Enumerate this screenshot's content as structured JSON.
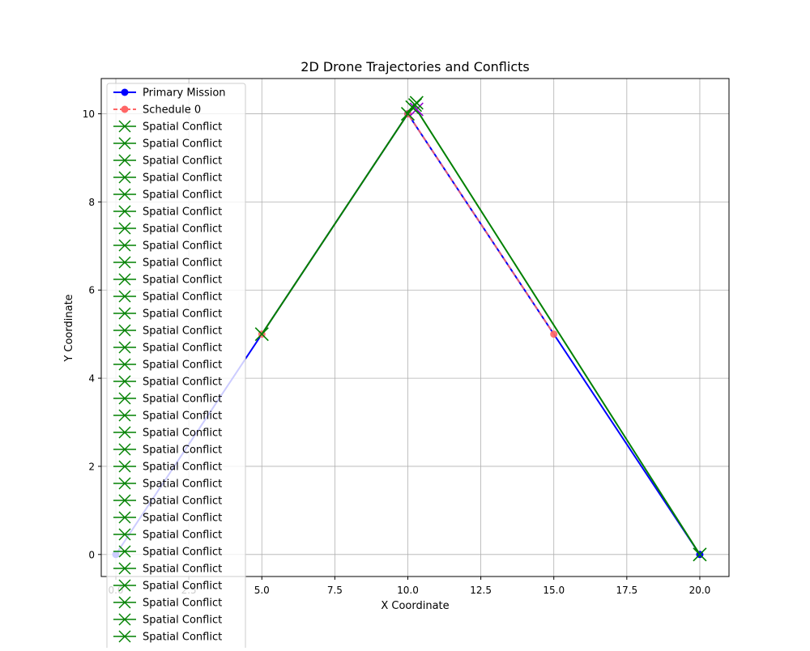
{
  "chart_data": {
    "type": "line",
    "title": "2D Drone Trajectories and Conflicts",
    "xlabel": "X Coordinate",
    "ylabel": "Y Coordinate",
    "xlim": [
      -0.5,
      21.0
    ],
    "ylim": [
      -0.5,
      10.8
    ],
    "grid": true,
    "legend_position": "upper-left",
    "x_ticks": [
      0.0,
      2.5,
      5.0,
      7.5,
      10.0,
      12.5,
      15.0,
      17.5,
      20.0
    ],
    "x_tick_labels": [
      "0.0",
      "2.5",
      "5.0",
      "7.5",
      "10.0",
      "12.5",
      "15.0",
      "17.5",
      "20.0"
    ],
    "y_ticks": [
      0,
      2,
      4,
      6,
      8,
      10
    ],
    "y_tick_labels": [
      "0",
      "2",
      "4",
      "6",
      "8",
      "10"
    ],
    "primary": {
      "name": "Primary Mission",
      "color": "#0000ff",
      "points": [
        [
          0,
          0
        ],
        [
          10,
          10
        ],
        [
          20,
          0
        ]
      ]
    },
    "schedule": {
      "name": "Schedule 0",
      "color": "#ff6666",
      "points": [
        [
          5,
          5
        ],
        [
          10,
          10
        ],
        [
          15,
          5
        ]
      ]
    },
    "conflict_line": {
      "color": "#008000",
      "points": [
        [
          5,
          5
        ],
        [
          10.2,
          10.2
        ],
        [
          20,
          0
        ]
      ]
    },
    "conflict_markers": [
      [
        5,
        5
      ],
      [
        10.0,
        10.0
      ],
      [
        10.15,
        10.15
      ],
      [
        10.25,
        10.2
      ],
      [
        10.3,
        10.25
      ],
      [
        20,
        0
      ]
    ],
    "temporal_markers": [
      [
        10.3,
        10.1
      ]
    ],
    "temporal_color": "#9400d3",
    "legend_entries": [
      {
        "label": "Primary Mission",
        "style": "primary"
      },
      {
        "label": "Schedule 0",
        "style": "schedule"
      },
      {
        "label": "Spatial Conflict",
        "style": "conflict"
      },
      {
        "label": "Spatial Conflict",
        "style": "conflict"
      },
      {
        "label": "Spatial Conflict",
        "style": "conflict"
      },
      {
        "label": "Spatial Conflict",
        "style": "conflict"
      },
      {
        "label": "Spatial Conflict",
        "style": "conflict"
      },
      {
        "label": "Spatial Conflict",
        "style": "conflict"
      },
      {
        "label": "Spatial Conflict",
        "style": "conflict"
      },
      {
        "label": "Spatial Conflict",
        "style": "conflict"
      },
      {
        "label": "Spatial Conflict",
        "style": "conflict"
      },
      {
        "label": "Spatial Conflict",
        "style": "conflict"
      },
      {
        "label": "Spatial Conflict",
        "style": "conflict"
      },
      {
        "label": "Spatial Conflict",
        "style": "conflict"
      },
      {
        "label": "Spatial Conflict",
        "style": "conflict"
      },
      {
        "label": "Spatial Conflict",
        "style": "conflict"
      },
      {
        "label": "Spatial Conflict",
        "style": "conflict"
      },
      {
        "label": "Spatial Conflict",
        "style": "conflict"
      },
      {
        "label": "Spatial Conflict",
        "style": "conflict"
      },
      {
        "label": "Spatial Conflict",
        "style": "conflict"
      },
      {
        "label": "Spatial Conflict",
        "style": "conflict"
      },
      {
        "label": "Spatial Conflict",
        "style": "conflict"
      },
      {
        "label": "Spatial Conflict",
        "style": "conflict"
      },
      {
        "label": "Spatial Conflict",
        "style": "conflict"
      },
      {
        "label": "Spatial Conflict",
        "style": "conflict"
      },
      {
        "label": "Spatial Conflict",
        "style": "conflict"
      },
      {
        "label": "Spatial Conflict",
        "style": "conflict"
      },
      {
        "label": "Spatial Conflict",
        "style": "conflict"
      },
      {
        "label": "Spatial Conflict",
        "style": "conflict"
      },
      {
        "label": "Spatial Conflict",
        "style": "conflict"
      },
      {
        "label": "Spatial Conflict",
        "style": "conflict"
      },
      {
        "label": "Spatial Conflict",
        "style": "conflict"
      },
      {
        "label": "Spatial Conflict",
        "style": "conflict"
      }
    ]
  }
}
